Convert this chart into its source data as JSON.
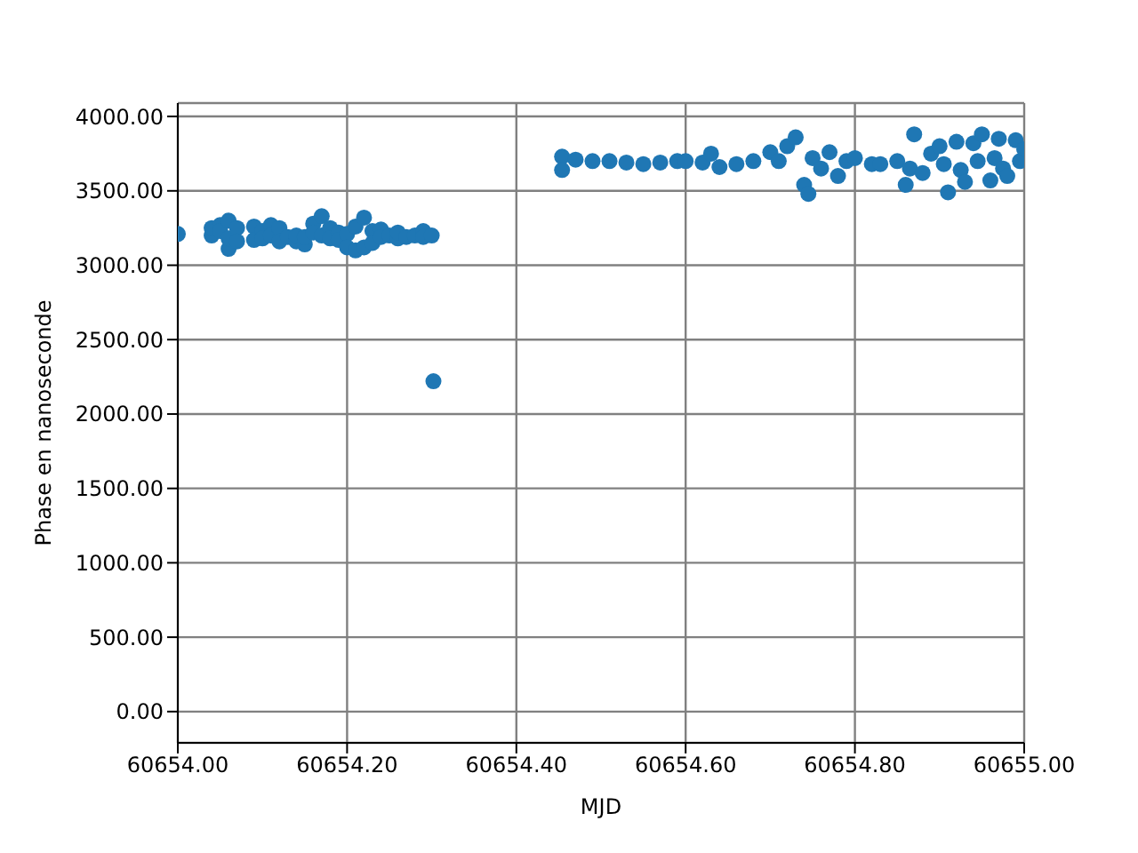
{
  "chart_data": {
    "type": "scatter",
    "xlabel": "MJD",
    "ylabel": "Phase en nanoseconde",
    "marker": "circle",
    "grid": true,
    "legend": false,
    "xlim": [
      60654.0,
      60655.0
    ],
    "xticks": [
      {
        "value": 60654.0,
        "label": "60654.00"
      },
      {
        "value": 60654.2,
        "label": "60654.20"
      },
      {
        "value": 60654.4,
        "label": "60654.40"
      },
      {
        "value": 60654.6,
        "label": "60654.60"
      },
      {
        "value": 60654.8,
        "label": "60654.80"
      },
      {
        "value": 60655.0,
        "label": "60655.00"
      }
    ],
    "ylim": [
      -210,
      4090
    ],
    "yticks": [
      {
        "value": 0,
        "label": "0.00"
      },
      {
        "value": 500,
        "label": "500.00"
      },
      {
        "value": 1000,
        "label": "1000.00"
      },
      {
        "value": 1500,
        "label": "1500.00"
      },
      {
        "value": 2000,
        "label": "2000.00"
      },
      {
        "value": 2500,
        "label": "2500.00"
      },
      {
        "value": 3000,
        "label": "3000.00"
      },
      {
        "value": 3500,
        "label": "3500.00"
      },
      {
        "value": 4000,
        "label": "4000.00"
      }
    ],
    "series": [
      {
        "color": "#1f77b4",
        "x": [
          60654.0,
          60654.04,
          60654.04,
          60654.05,
          60654.05,
          60654.06,
          60654.06,
          60654.06,
          60654.07,
          60654.07,
          60654.09,
          60654.09,
          60654.1,
          60654.1,
          60654.11,
          60654.11,
          60654.12,
          60654.12,
          60654.13,
          60654.14,
          60654.14,
          60654.15,
          60654.15,
          60654.16,
          60654.16,
          60654.17,
          60654.17,
          60654.18,
          60654.18,
          60654.19,
          60654.19,
          60654.2,
          60654.2,
          60654.21,
          60654.21,
          60654.22,
          60654.22,
          60654.23,
          60654.23,
          60654.24,
          60654.24,
          60654.25,
          60654.26,
          60654.26,
          60654.27,
          60654.28,
          60654.29,
          60654.29,
          60654.3,
          60654.302,
          60654.454,
          60654.454,
          60654.47,
          60654.49,
          60654.51,
          60654.53,
          60654.55,
          60654.57,
          60654.59,
          60654.6,
          60654.62,
          60654.63,
          60654.64,
          60654.66,
          60654.68,
          60654.7,
          60654.71,
          60654.72,
          60654.73,
          60654.74,
          60654.745,
          60654.75,
          60654.76,
          60654.77,
          60654.78,
          60654.79,
          60654.8,
          60654.82,
          60654.83,
          60654.85,
          60654.86,
          60654.865,
          60654.87,
          60654.88,
          60654.89,
          60654.9,
          60654.905,
          60654.91,
          60654.92,
          60654.925,
          60654.93,
          60654.94,
          60654.945,
          60654.95,
          60654.96,
          60654.965,
          60654.97,
          60654.975,
          60654.98,
          60654.99,
          60654.995,
          60655.0
        ],
        "values": [
          3210,
          3200,
          3250,
          3270,
          3230,
          3110,
          3300,
          3180,
          3250,
          3160,
          3260,
          3170,
          3230,
          3180,
          3270,
          3200,
          3250,
          3160,
          3190,
          3160,
          3200,
          3140,
          3190,
          3280,
          3220,
          3330,
          3200,
          3250,
          3180,
          3220,
          3170,
          3210,
          3120,
          3100,
          3260,
          3320,
          3120,
          3230,
          3150,
          3240,
          3190,
          3200,
          3180,
          3220,
          3190,
          3200,
          3230,
          3190,
          3200,
          2220,
          3730,
          3640,
          3710,
          3700,
          3700,
          3690,
          3680,
          3690,
          3700,
          3700,
          3690,
          3750,
          3660,
          3680,
          3700,
          3760,
          3700,
          3800,
          3860,
          3540,
          3480,
          3720,
          3650,
          3760,
          3600,
          3700,
          3720,
          3680,
          3680,
          3700,
          3540,
          3650,
          3880,
          3620,
          3750,
          3800,
          3680,
          3490,
          3830,
          3640,
          3560,
          3820,
          3700,
          3880,
          3570,
          3720,
          3850,
          3650,
          3600,
          3840,
          3700,
          3780
        ]
      }
    ]
  }
}
